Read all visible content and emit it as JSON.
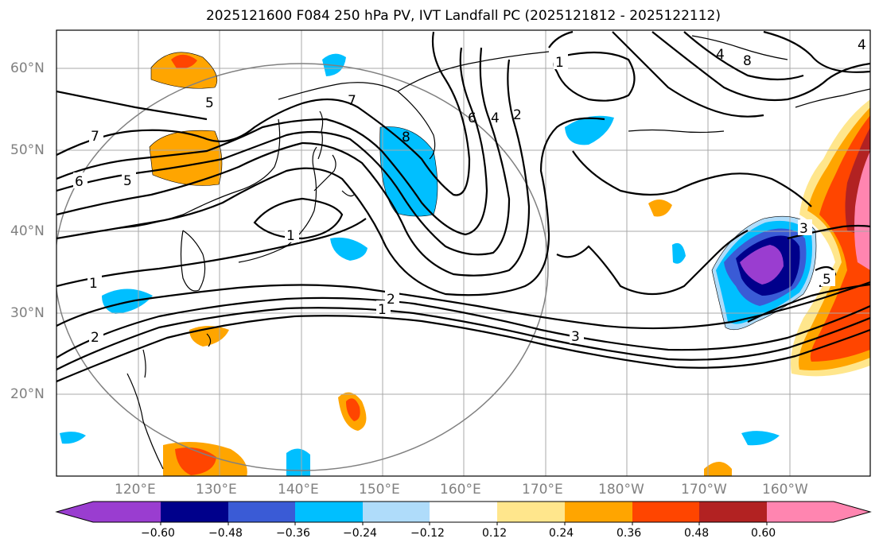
{
  "title": "2025121600 F084 250 hPa PV, IVT Landfall PC (2025121812 - 2025122112)",
  "lat_labels": [
    "60°N",
    "50°N",
    "40°N",
    "30°N",
    "20°N"
  ],
  "lon_labels": [
    "120°E",
    "130°E",
    "140°E",
    "150°E",
    "160°E",
    "170°E",
    "180°W",
    "170°W",
    "160°W"
  ],
  "pv_contour_labels": [
    "7",
    "6",
    "5",
    "5",
    "1",
    "1",
    "2",
    "1",
    "2",
    "3",
    "7",
    "8",
    "6",
    "4",
    "2",
    "1",
    "4",
    "8",
    "3",
    "5",
    "4"
  ],
  "colorbar": {
    "ticks": [
      "−0.60",
      "−0.48",
      "−0.36",
      "−0.24",
      "−0.12",
      "0.12",
      "0.24",
      "0.36",
      "0.48",
      "0.60"
    ],
    "colors": [
      "#9a3dd0",
      "#00008b",
      "#3a5bd6",
      "#00bfff",
      "#afdcfa",
      "#ffffff",
      "#ffe68c",
      "#ffa500",
      "#ff4500",
      "#b22222",
      "#ff85b0"
    ]
  },
  "grid": true
}
